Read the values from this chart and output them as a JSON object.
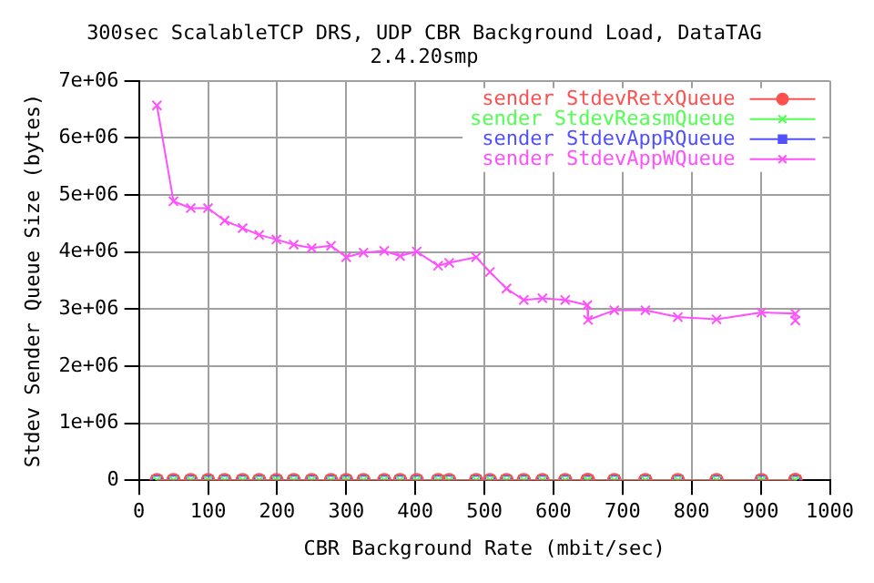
{
  "chart_data": {
    "type": "line",
    "title": [
      "300sec ScalableTCP DRS, UDP CBR Background Load, DataTAG",
      "2.4.20smp"
    ],
    "xlabel": "CBR Background Rate (mbit/sec)",
    "ylabel": "Stdev Sender Queue Size (bytes)",
    "x": [
      26,
      50,
      75,
      100,
      124,
      150,
      174,
      199,
      224,
      250,
      278,
      300,
      325,
      355,
      378,
      402,
      433,
      449,
      488,
      508,
      532,
      557,
      584,
      617,
      649,
      650,
      688,
      733,
      780,
      836,
      901,
      950,
      950
    ],
    "series": [
      {
        "name": "sender StdevRetxQueue",
        "color": "#ff5050",
        "marker": "circle",
        "values": [
          0,
          0,
          0,
          0,
          0,
          0,
          0,
          0,
          0,
          0,
          0,
          0,
          0,
          0,
          0,
          0,
          0,
          0,
          0,
          0,
          0,
          0,
          0,
          0,
          0,
          0,
          0,
          0,
          0,
          0,
          0,
          0,
          0
        ]
      },
      {
        "name": "sender StdevReasmQueue",
        "color": "#50ff50",
        "marker": "cross",
        "values": [
          0,
          0,
          0,
          0,
          0,
          0,
          0,
          0,
          0,
          0,
          0,
          0,
          0,
          0,
          0,
          0,
          0,
          0,
          0,
          0,
          0,
          0,
          0,
          0,
          0,
          0,
          0,
          0,
          0,
          0,
          0,
          0,
          0
        ]
      },
      {
        "name": "sender StdevAppRQueue",
        "color": "#5050ff",
        "marker": "square",
        "values": [
          0,
          0,
          0,
          0,
          0,
          0,
          0,
          0,
          0,
          0,
          0,
          0,
          0,
          0,
          0,
          0,
          0,
          0,
          0,
          0,
          0,
          0,
          0,
          0,
          0,
          0,
          0,
          0,
          0,
          0,
          0,
          0,
          0
        ]
      },
      {
        "name": "sender StdevAppWQueue",
        "color": "#ff50ff",
        "marker": "cross",
        "values": [
          6570000,
          4890000,
          4770000,
          4770000,
          4550000,
          4420000,
          4300000,
          4220000,
          4130000,
          4070000,
          4110000,
          3910000,
          3990000,
          4020000,
          3930000,
          4010000,
          3760000,
          3810000,
          3910000,
          3650000,
          3360000,
          3160000,
          3190000,
          3160000,
          3070000,
          2810000,
          2980000,
          2980000,
          2860000,
          2820000,
          2940000,
          2920000,
          2800000
        ]
      }
    ],
    "xlim": [
      0,
      1000
    ],
    "xticks": [
      0,
      100,
      200,
      300,
      400,
      500,
      600,
      700,
      800,
      900,
      1000
    ],
    "ylim": [
      0,
      7000000
    ],
    "yticks": [
      0,
      {
        "value": 1000000,
        "label": "1e+06"
      },
      {
        "value": 2000000,
        "label": "2e+06"
      },
      {
        "value": 3000000,
        "label": "3e+06"
      },
      {
        "value": 4000000,
        "label": "4e+06"
      },
      {
        "value": 5000000,
        "label": "5e+06"
      },
      {
        "value": 6000000,
        "label": "6e+06"
      },
      {
        "value": 7000000,
        "label": "7e+06"
      }
    ],
    "grid": true,
    "legend": "top right"
  }
}
